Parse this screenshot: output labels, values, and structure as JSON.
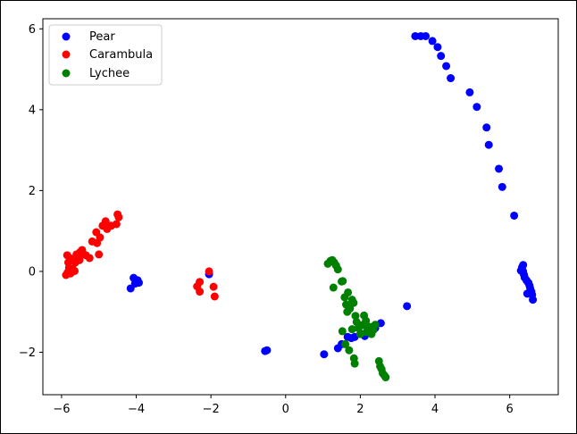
{
  "chart_data": {
    "type": "scatter",
    "title": "",
    "xlabel": "",
    "ylabel": "",
    "xlim": [
      -6.5,
      7.3
    ],
    "ylim": [
      -3.05,
      6.25
    ],
    "xticks": [
      -6,
      -4,
      -2,
      0,
      2,
      4,
      6
    ],
    "yticks": [
      -2,
      0,
      2,
      4,
      6
    ],
    "xtick_labels": [
      "−6",
      "−4",
      "−2",
      "0",
      "2",
      "4",
      "6"
    ],
    "ytick_labels": [
      "−2",
      "0",
      "2",
      "4",
      "6"
    ],
    "grid": false,
    "legend_position": "top-left",
    "series": [
      {
        "name": "Pear",
        "color": "#0000ff",
        "points": [
          [
            3.47,
            5.82
          ],
          [
            3.62,
            5.82
          ],
          [
            3.75,
            5.82
          ],
          [
            3.93,
            5.7
          ],
          [
            4.07,
            5.55
          ],
          [
            4.16,
            5.33
          ],
          [
            4.3,
            5.08
          ],
          [
            4.42,
            4.78
          ],
          [
            4.93,
            4.43
          ],
          [
            5.12,
            4.07
          ],
          [
            5.38,
            3.56
          ],
          [
            5.44,
            3.13
          ],
          [
            5.71,
            2.54
          ],
          [
            5.8,
            2.09
          ],
          [
            6.12,
            1.38
          ],
          [
            6.33,
            0.1
          ],
          [
            6.36,
            0.0
          ],
          [
            6.38,
            -0.08
          ],
          [
            6.4,
            -0.15
          ],
          [
            6.45,
            -0.22
          ],
          [
            6.5,
            -0.28
          ],
          [
            6.53,
            -0.35
          ],
          [
            6.55,
            -0.42
          ],
          [
            6.58,
            -0.5
          ],
          [
            6.6,
            -0.58
          ],
          [
            6.47,
            -0.55
          ],
          [
            6.62,
            -0.7
          ],
          [
            6.3,
            0.02
          ],
          [
            6.36,
            0.16
          ],
          [
            -4.15,
            -0.42
          ],
          [
            -4.07,
            -0.16
          ],
          [
            -4.03,
            -0.3
          ],
          [
            -3.96,
            -0.22
          ],
          [
            -3.93,
            -0.28
          ],
          [
            -2.05,
            -0.07
          ],
          [
            -0.55,
            -1.97
          ],
          [
            -0.5,
            -1.95
          ],
          [
            1.03,
            -2.05
          ],
          [
            1.4,
            -1.9
          ],
          [
            1.5,
            -1.8
          ],
          [
            1.66,
            -1.62
          ],
          [
            1.76,
            -1.65
          ],
          [
            1.85,
            -1.62
          ],
          [
            2.05,
            -1.55
          ],
          [
            2.12,
            -1.6
          ],
          [
            2.25,
            -1.5
          ],
          [
            2.4,
            -1.4
          ],
          [
            2.55,
            -1.28
          ],
          [
            3.25,
            -0.86
          ]
        ]
      },
      {
        "name": "Carambula",
        "color": "#ff0000",
        "points": [
          [
            -5.88,
            -0.09
          ],
          [
            -5.84,
            -0.03
          ],
          [
            -5.8,
            0.09
          ],
          [
            -5.82,
            0.22
          ],
          [
            -5.85,
            0.4
          ],
          [
            -5.78,
            0.33
          ],
          [
            -5.76,
            -0.05
          ],
          [
            -5.7,
            0.06
          ],
          [
            -5.65,
            0.01
          ],
          [
            -5.63,
            0.22
          ],
          [
            -5.6,
            0.42
          ],
          [
            -5.57,
            0.34
          ],
          [
            -5.52,
            0.28
          ],
          [
            -5.5,
            0.48
          ],
          [
            -5.45,
            0.53
          ],
          [
            -5.42,
            0.43
          ],
          [
            -5.35,
            0.4
          ],
          [
            -5.25,
            0.33
          ],
          [
            -5.18,
            0.74
          ],
          [
            -5.05,
            0.7
          ],
          [
            -5.07,
            0.97
          ],
          [
            -5.0,
            0.42
          ],
          [
            -4.97,
            0.84
          ],
          [
            -4.9,
            1.13
          ],
          [
            -4.82,
            1.24
          ],
          [
            -4.78,
            1.05
          ],
          [
            -4.67,
            1.13
          ],
          [
            -4.53,
            1.17
          ],
          [
            -4.5,
            1.41
          ],
          [
            -4.47,
            1.34
          ],
          [
            -2.37,
            -0.37
          ],
          [
            -2.3,
            -0.26
          ],
          [
            -2.3,
            -0.5
          ],
          [
            -2.05,
            0.0
          ],
          [
            -1.93,
            -0.38
          ],
          [
            -1.9,
            -0.62
          ]
        ]
      },
      {
        "name": "Lychee",
        "color": "#008000",
        "points": [
          [
            1.13,
            0.19
          ],
          [
            1.2,
            0.26
          ],
          [
            1.25,
            0.28
          ],
          [
            1.3,
            0.22
          ],
          [
            1.35,
            0.15
          ],
          [
            1.4,
            0.05
          ],
          [
            1.28,
            -0.4
          ],
          [
            1.5,
            -0.25
          ],
          [
            1.53,
            -0.24
          ],
          [
            1.58,
            -0.64
          ],
          [
            1.62,
            -0.82
          ],
          [
            1.67,
            -0.52
          ],
          [
            1.72,
            -0.92
          ],
          [
            1.65,
            -1.0
          ],
          [
            1.78,
            -0.7
          ],
          [
            1.82,
            -0.78
          ],
          [
            1.87,
            -1.1
          ],
          [
            1.9,
            -1.25
          ],
          [
            1.95,
            -1.4
          ],
          [
            2.0,
            -1.55
          ],
          [
            2.05,
            -1.33
          ],
          [
            2.1,
            -1.09
          ],
          [
            2.15,
            -1.22
          ],
          [
            2.17,
            -1.5
          ],
          [
            2.2,
            -1.45
          ],
          [
            2.25,
            -1.37
          ],
          [
            2.3,
            -1.55
          ],
          [
            2.35,
            -1.45
          ],
          [
            1.52,
            -1.48
          ],
          [
            1.6,
            -1.8
          ],
          [
            1.7,
            -1.95
          ],
          [
            1.78,
            -1.43
          ],
          [
            1.83,
            -2.15
          ],
          [
            1.85,
            -2.28
          ],
          [
            2.5,
            -2.22
          ],
          [
            2.53,
            -2.35
          ],
          [
            2.57,
            -2.42
          ],
          [
            2.6,
            -2.52
          ],
          [
            2.65,
            -2.58
          ],
          [
            2.68,
            -2.62
          ],
          [
            1.95,
            -1.4
          ],
          [
            2.4,
            -1.32
          ]
        ]
      }
    ]
  }
}
